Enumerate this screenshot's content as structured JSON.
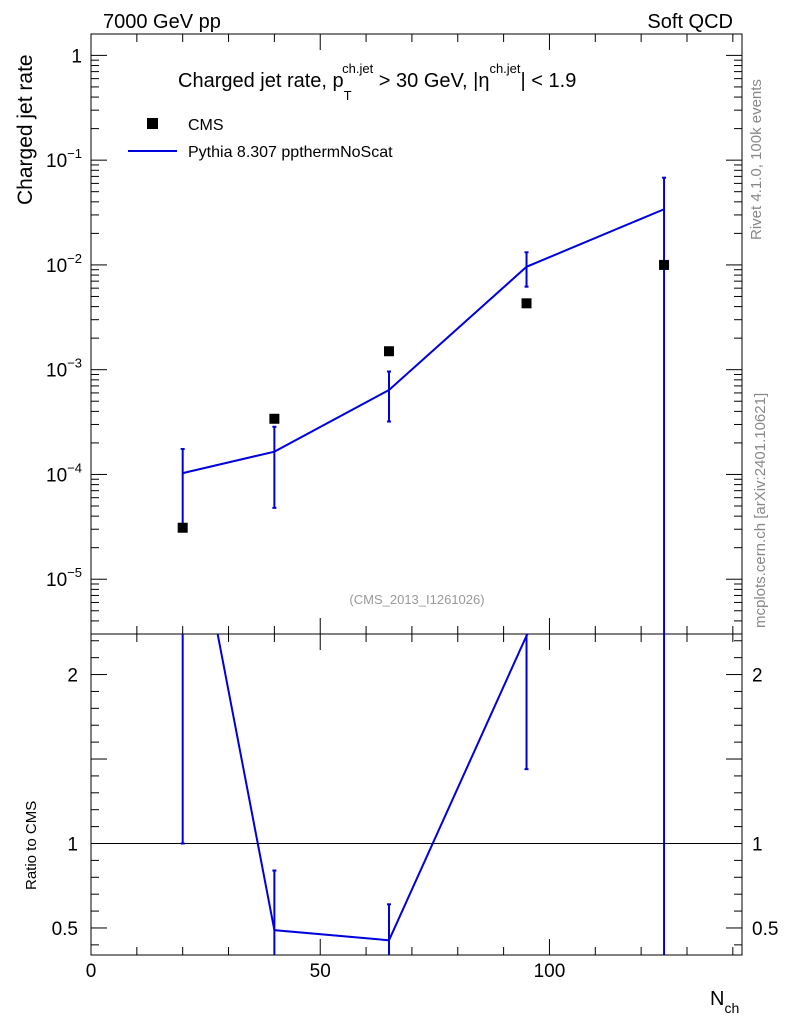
{
  "header": {
    "left": "7000 GeV pp",
    "right": "Soft QCD"
  },
  "side_labels": {
    "rivet": "Rivet 4.1.0,  100k events",
    "mcplots": "mcplots.cern.ch [arXiv:2401.10621]"
  },
  "chart_data": {
    "type": "scatter",
    "title": {
      "prefix": "Charged jet rate, p",
      "pt_sup": "ch.jet",
      "pt_sub": "T",
      "mid": " > 30 GeV,  |η",
      "eta_sup": "ch.jet",
      "suffix": "| < 1.9"
    },
    "analysis_tag": "(CMS_2013_I1261026)",
    "xlabel": {
      "base": "N",
      "sub": "ch"
    },
    "ylabel": "Charged jet rate",
    "ratio_ylabel": "Ratio to CMS",
    "xlim": [
      0,
      142
    ],
    "ylim_log": [
      3e-06,
      1.6
    ],
    "ratio_ylim": [
      0.34,
      2.24
    ],
    "x_ticks": [
      {
        "value": 0,
        "label": "0"
      },
      {
        "value": 50,
        "label": "50"
      },
      {
        "value": 100,
        "label": "100"
      }
    ],
    "y_ticks": [
      {
        "value": 1,
        "base": "1",
        "exp": ""
      },
      {
        "value": 0.1,
        "base": "10",
        "exp": "−1"
      },
      {
        "value": 0.01,
        "base": "10",
        "exp": "−2"
      },
      {
        "value": 0.001,
        "base": "10",
        "exp": "−3"
      },
      {
        "value": 0.0001,
        "base": "10",
        "exp": "−4"
      },
      {
        "value": 1e-05,
        "base": "10",
        "exp": "−5"
      }
    ],
    "ratio_ticks": [
      {
        "value": 2,
        "label": "2"
      },
      {
        "value": 1,
        "label": "1"
      },
      {
        "value": 0.5,
        "label": "0.5"
      }
    ],
    "legend": [
      {
        "name": "CMS",
        "marker": "square",
        "color": "#000000"
      },
      {
        "name": "Pythia 8.307 ppthermNoScat",
        "marker": "line",
        "color": "#0000dd"
      }
    ],
    "series": [
      {
        "name": "CMS",
        "x": [
          20,
          40,
          65,
          95,
          125
        ],
        "y": [
          3.1e-05,
          0.00034,
          0.0015,
          0.0043,
          0.01
        ]
      },
      {
        "name": "Pythia 8.307 ppthermNoScat",
        "x": [
          20,
          40,
          65,
          95,
          125
        ],
        "y": [
          0.000103,
          0.000165,
          0.00064,
          0.0096,
          0.034
        ],
        "err_low": [
          3.1e-05,
          4.8e-05,
          0.00032,
          0.0062,
          1e-09
        ],
        "err_high": [
          0.000175,
          0.000285,
          0.00096,
          0.0132,
          0.068
        ]
      }
    ],
    "ratio": {
      "x": [
        20,
        40,
        65,
        95,
        125
      ],
      "y": [
        3.32,
        0.487,
        0.427,
        2.23,
        3.4
      ],
      "err_low": [
        1.0,
        0.14,
        0.213,
        1.44,
        0.0
      ],
      "err_high": [
        5.6,
        0.84,
        0.64,
        3.07,
        6.8
      ]
    }
  }
}
